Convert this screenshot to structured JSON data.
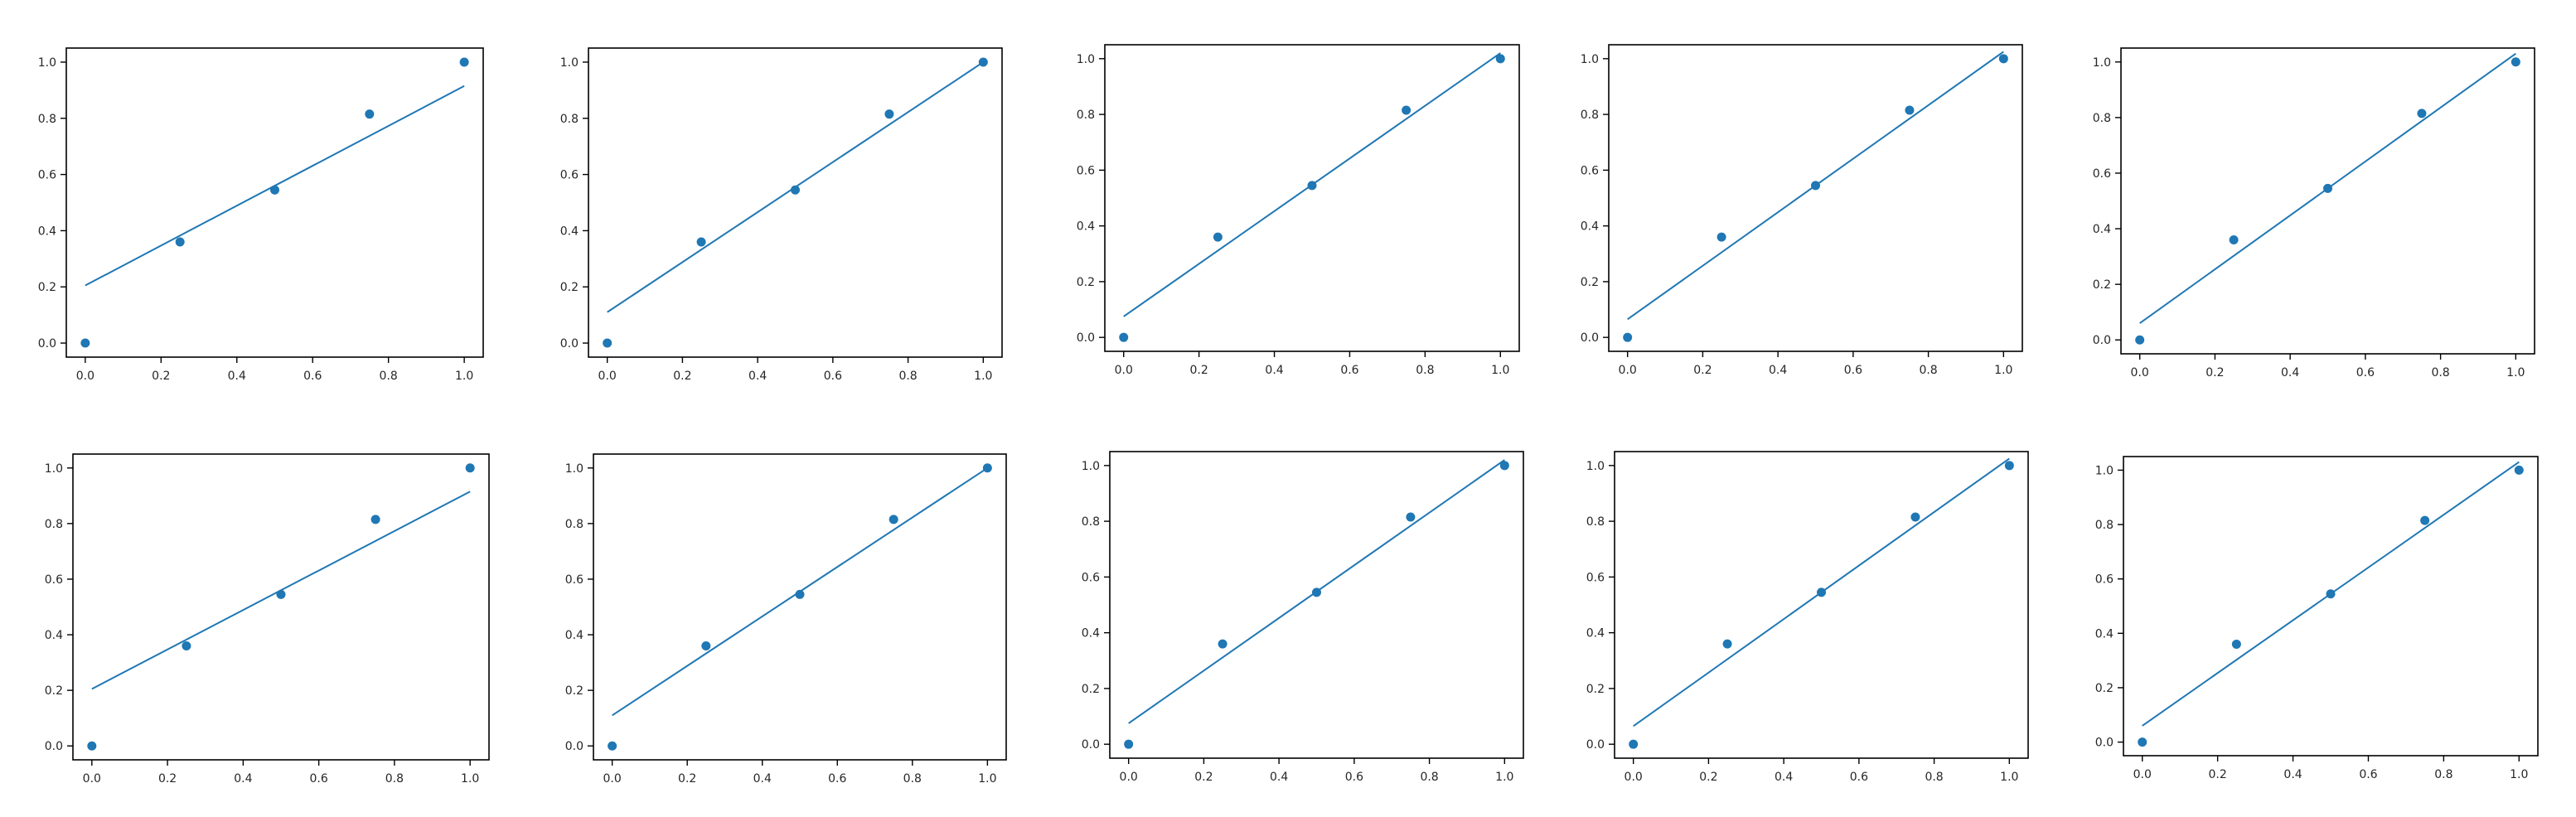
{
  "figure": {
    "rows": 2,
    "cols": 5,
    "colors": {
      "scatter": "#1f77b4",
      "line": "#1f77b4",
      "axes": "#000000",
      "background": "#ffffff"
    }
  },
  "chart_data": [
    {
      "type": "scatter",
      "title": "",
      "xlabel": "",
      "ylabel": "",
      "xlim": [
        -0.05,
        1.05
      ],
      "ylim": [
        -0.05,
        1.05
      ],
      "xticks": [
        0.0,
        0.2,
        0.4,
        0.6,
        0.8,
        1.0
      ],
      "yticks": [
        0.0,
        0.2,
        0.4,
        0.6,
        0.8,
        1.0
      ],
      "grid": false,
      "series": [
        {
          "type": "scatter",
          "x": [
            0,
            0.25,
            0.5,
            0.75,
            1.0
          ],
          "y": [
            0,
            0.36,
            0.545,
            0.815,
            1.0
          ]
        },
        {
          "type": "line",
          "x": [
            0,
            1.0
          ],
          "y": [
            0.205,
            0.915
          ]
        }
      ]
    },
    {
      "type": "scatter",
      "title": "",
      "xlabel": "",
      "ylabel": "",
      "xlim": [
        -0.05,
        1.05
      ],
      "ylim": [
        -0.05,
        1.05
      ],
      "xticks": [
        0.0,
        0.2,
        0.4,
        0.6,
        0.8,
        1.0
      ],
      "yticks": [
        0.0,
        0.2,
        0.4,
        0.6,
        0.8,
        1.0
      ],
      "grid": false,
      "series": [
        {
          "type": "scatter",
          "x": [
            0,
            0.25,
            0.5,
            0.75,
            1.0
          ],
          "y": [
            0,
            0.36,
            0.545,
            0.815,
            1.0
          ]
        },
        {
          "type": "line",
          "x": [
            0,
            1.0
          ],
          "y": [
            0.11,
            1.0
          ]
        }
      ]
    },
    {
      "type": "scatter",
      "title": "",
      "xlabel": "",
      "ylabel": "",
      "xlim": [
        -0.05,
        1.05
      ],
      "ylim": [
        -0.05,
        1.05
      ],
      "xticks": [
        0.0,
        0.2,
        0.4,
        0.6,
        0.8,
        1.0
      ],
      "yticks": [
        0.0,
        0.2,
        0.4,
        0.6,
        0.8,
        1.0
      ],
      "grid": false,
      "series": [
        {
          "type": "scatter",
          "x": [
            0,
            0.25,
            0.5,
            0.75,
            1.0
          ],
          "y": [
            0,
            0.36,
            0.545,
            0.815,
            1.0
          ]
        },
        {
          "type": "line",
          "x": [
            0,
            1.0
          ],
          "y": [
            0.075,
            1.02
          ]
        }
      ]
    },
    {
      "type": "scatter",
      "title": "",
      "xlabel": "",
      "ylabel": "",
      "xlim": [
        -0.05,
        1.05
      ],
      "ylim": [
        -0.05,
        1.05
      ],
      "xticks": [
        0.0,
        0.2,
        0.4,
        0.6,
        0.8,
        1.0
      ],
      "yticks": [
        0.0,
        0.2,
        0.4,
        0.6,
        0.8,
        1.0
      ],
      "grid": false,
      "series": [
        {
          "type": "scatter",
          "x": [
            0,
            0.25,
            0.5,
            0.75,
            1.0
          ],
          "y": [
            0,
            0.36,
            0.545,
            0.815,
            1.0
          ]
        },
        {
          "type": "line",
          "x": [
            0,
            1.0
          ],
          "y": [
            0.065,
            1.025
          ]
        }
      ]
    },
    {
      "type": "scatter",
      "title": "",
      "xlabel": "",
      "ylabel": "",
      "xlim": [
        -0.05,
        1.05
      ],
      "ylim": [
        -0.05,
        1.05
      ],
      "xticks": [
        0.0,
        0.2,
        0.4,
        0.6,
        0.8,
        1.0
      ],
      "yticks": [
        0.0,
        0.2,
        0.4,
        0.6,
        0.8,
        1.0
      ],
      "grid": false,
      "series": [
        {
          "type": "scatter",
          "x": [
            0,
            0.25,
            0.5,
            0.75,
            1.0
          ],
          "y": [
            0,
            0.36,
            0.545,
            0.815,
            1.0
          ]
        },
        {
          "type": "line",
          "x": [
            0,
            1.0
          ],
          "y": [
            0.06,
            1.03
          ]
        }
      ]
    },
    {
      "type": "scatter",
      "title": "",
      "xlabel": "",
      "ylabel": "",
      "xlim": [
        -0.05,
        1.05
      ],
      "ylim": [
        -0.05,
        1.05
      ],
      "xticks": [
        0.0,
        0.2,
        0.4,
        0.6,
        0.8,
        1.0
      ],
      "yticks": [
        0.0,
        0.2,
        0.4,
        0.6,
        0.8,
        1.0
      ],
      "grid": false,
      "series": [
        {
          "type": "scatter",
          "x": [
            0,
            0.25,
            0.5,
            0.75,
            1.0
          ],
          "y": [
            0,
            0.36,
            0.545,
            0.815,
            1.0
          ]
        },
        {
          "type": "line",
          "x": [
            0,
            1.0
          ],
          "y": [
            0.205,
            0.915
          ]
        }
      ]
    },
    {
      "type": "scatter",
      "title": "",
      "xlabel": "",
      "ylabel": "",
      "xlim": [
        -0.05,
        1.05
      ],
      "ylim": [
        -0.05,
        1.05
      ],
      "xticks": [
        0.0,
        0.2,
        0.4,
        0.6,
        0.8,
        1.0
      ],
      "yticks": [
        0.0,
        0.2,
        0.4,
        0.6,
        0.8,
        1.0
      ],
      "grid": false,
      "series": [
        {
          "type": "scatter",
          "x": [
            0,
            0.25,
            0.5,
            0.75,
            1.0
          ],
          "y": [
            0,
            0.36,
            0.545,
            0.815,
            1.0
          ]
        },
        {
          "type": "line",
          "x": [
            0,
            1.0
          ],
          "y": [
            0.11,
            1.0
          ]
        }
      ]
    },
    {
      "type": "scatter",
      "title": "",
      "xlabel": "",
      "ylabel": "",
      "xlim": [
        -0.05,
        1.05
      ],
      "ylim": [
        -0.05,
        1.05
      ],
      "xticks": [
        0.0,
        0.2,
        0.4,
        0.6,
        0.8,
        1.0
      ],
      "yticks": [
        0.0,
        0.2,
        0.4,
        0.6,
        0.8,
        1.0
      ],
      "grid": false,
      "series": [
        {
          "type": "scatter",
          "x": [
            0,
            0.25,
            0.5,
            0.75,
            1.0
          ],
          "y": [
            0,
            0.36,
            0.545,
            0.815,
            1.0
          ]
        },
        {
          "type": "line",
          "x": [
            0,
            1.0
          ],
          "y": [
            0.075,
            1.02
          ]
        }
      ]
    },
    {
      "type": "scatter",
      "title": "",
      "xlabel": "",
      "ylabel": "",
      "xlim": [
        -0.05,
        1.05
      ],
      "ylim": [
        -0.05,
        1.05
      ],
      "xticks": [
        0.0,
        0.2,
        0.4,
        0.6,
        0.8,
        1.0
      ],
      "yticks": [
        0.0,
        0.2,
        0.4,
        0.6,
        0.8,
        1.0
      ],
      "grid": false,
      "series": [
        {
          "type": "scatter",
          "x": [
            0,
            0.25,
            0.5,
            0.75,
            1.0
          ],
          "y": [
            0,
            0.36,
            0.545,
            0.815,
            1.0
          ]
        },
        {
          "type": "line",
          "x": [
            0,
            1.0
          ],
          "y": [
            0.065,
            1.025
          ]
        }
      ]
    },
    {
      "type": "scatter",
      "title": "",
      "xlabel": "",
      "ylabel": "",
      "xlim": [
        -0.05,
        1.05
      ],
      "ylim": [
        -0.05,
        1.05
      ],
      "xticks": [
        0.0,
        0.2,
        0.4,
        0.6,
        0.8,
        1.0
      ],
      "yticks": [
        0.0,
        0.2,
        0.4,
        0.6,
        0.8,
        1.0
      ],
      "grid": false,
      "series": [
        {
          "type": "scatter",
          "x": [
            0,
            0.25,
            0.5,
            0.75,
            1.0
          ],
          "y": [
            0,
            0.36,
            0.545,
            0.815,
            1.0
          ]
        },
        {
          "type": "line",
          "x": [
            0,
            1.0
          ],
          "y": [
            0.06,
            1.03
          ]
        }
      ]
    }
  ]
}
